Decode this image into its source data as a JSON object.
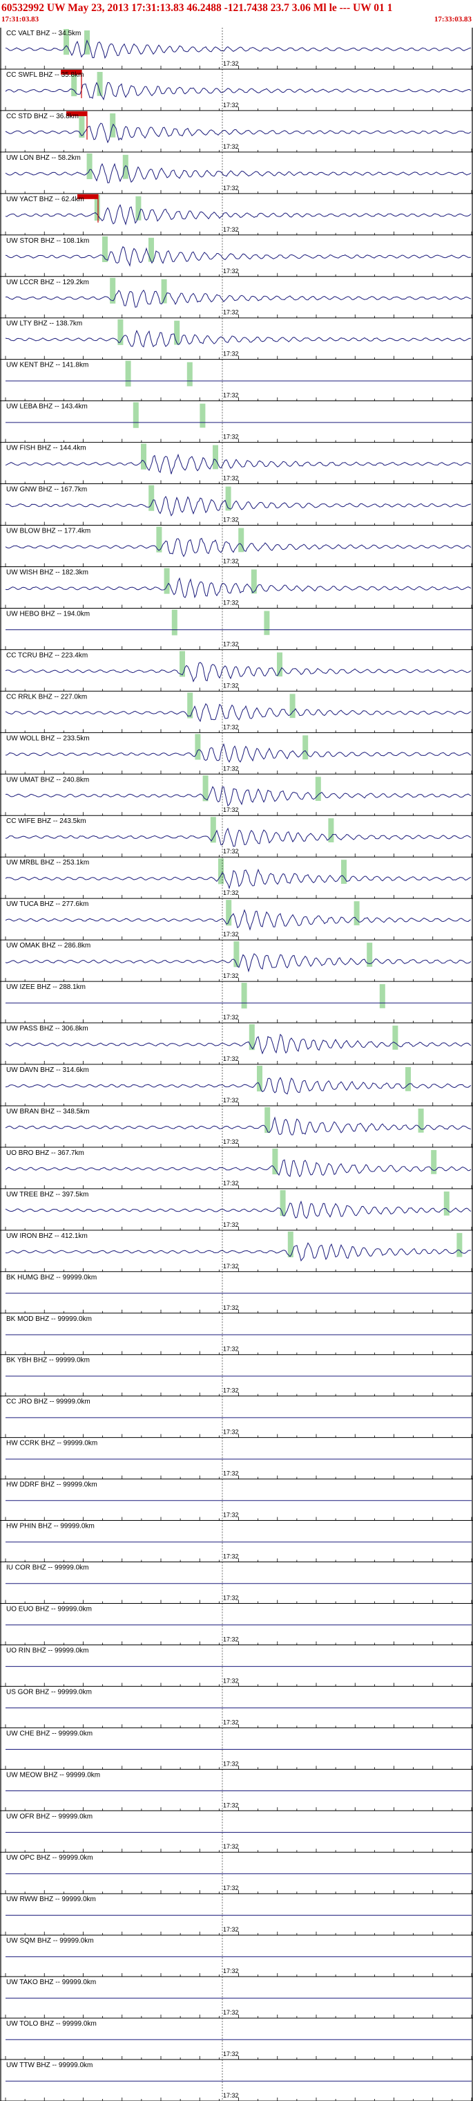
{
  "header": {
    "title": "60532992 UW May 23, 2013 17:31:13.83   46.2488  -121.7438 23.7 3.06 Ml le --- UW 01   1",
    "time_left": "17:31:03.83",
    "time_right": "17:33:03.83"
  },
  "chart_data": {
    "type": "seismogram",
    "title": "60532992 UW May 23, 2013 17:31:13.83   46.2488  -121.7438 23.7 3.06 Ml le --- UW 01   1",
    "x_start_label": "17:31:03.83",
    "x_end_label": "17:33:03.83",
    "mid_tick_label": "17:32",
    "colors": {
      "trace": "#1a1a7a",
      "pick_window": "#a8dca8",
      "pick_marker": "#cc0000",
      "header_text": "#d40000",
      "axis": "#000000"
    },
    "traces": [
      {
        "label": "CC VALT BHZ -- 34.5km",
        "has_data": true,
        "picks": 2,
        "red_marker": false
      },
      {
        "label": "CC SWFL BHZ -- 35.8km",
        "has_data": true,
        "picks": 2,
        "red_marker": true
      },
      {
        "label": "CC STD BHZ -- 36.8km",
        "has_data": true,
        "picks": 2,
        "red_marker": true
      },
      {
        "label": "UW LON BHZ -- 58.2km",
        "has_data": true,
        "picks": 2,
        "red_marker": false
      },
      {
        "label": "UW YACT BHZ -- 62.4km",
        "has_data": true,
        "picks": 2,
        "red_marker": true
      },
      {
        "label": "UW STOR BHZ -- 108.1km",
        "has_data": true,
        "picks": 2,
        "red_marker": false
      },
      {
        "label": "UW LCCR BHZ -- 129.2km",
        "has_data": true,
        "picks": 2,
        "red_marker": false
      },
      {
        "label": "UW LTY BHZ -- 138.7km",
        "has_data": true,
        "picks": 2,
        "red_marker": false
      },
      {
        "label": "UW KENT BHZ -- 141.8km",
        "has_data": false,
        "picks": 2,
        "red_marker": false
      },
      {
        "label": "UW LEBA BHZ -- 143.4km",
        "has_data": false,
        "picks": 2,
        "red_marker": false
      },
      {
        "label": "UW FISH BHZ -- 144.4km",
        "has_data": true,
        "picks": 2,
        "red_marker": false
      },
      {
        "label": "UW GNW BHZ -- 167.7km",
        "has_data": true,
        "picks": 2,
        "red_marker": false
      },
      {
        "label": "UW BLOW BHZ -- 177.4km",
        "has_data": true,
        "picks": 2,
        "red_marker": false
      },
      {
        "label": "UW WISH BHZ -- 182.3km",
        "has_data": true,
        "picks": 2,
        "red_marker": false
      },
      {
        "label": "UW HEBO BHZ -- 194.0km",
        "has_data": false,
        "picks": 2,
        "red_marker": false
      },
      {
        "label": "CC TCRU BHZ -- 223.4km",
        "has_data": true,
        "picks": 2,
        "red_marker": false
      },
      {
        "label": "CC RRLK BHZ -- 227.0km",
        "has_data": true,
        "picks": 2,
        "red_marker": false
      },
      {
        "label": "UW WOLL BHZ -- 233.5km",
        "has_data": true,
        "picks": 2,
        "red_marker": false
      },
      {
        "label": "UW UMAT BHZ -- 240.8km",
        "has_data": true,
        "picks": 2,
        "red_marker": false
      },
      {
        "label": "CC WIFE BHZ -- 243.5km",
        "has_data": true,
        "picks": 2,
        "red_marker": false
      },
      {
        "label": "UW MRBL BHZ -- 253.1km",
        "has_data": true,
        "picks": 2,
        "red_marker": false
      },
      {
        "label": "UW TUCA BHZ -- 277.6km",
        "has_data": true,
        "picks": 2,
        "red_marker": false
      },
      {
        "label": "UW OMAK BHZ -- 286.8km",
        "has_data": true,
        "picks": 2,
        "red_marker": false
      },
      {
        "label": "UW IZEE BHZ -- 288.1km",
        "has_data": false,
        "picks": 2,
        "red_marker": false
      },
      {
        "label": "UW PASS BHZ -- 306.8km",
        "has_data": true,
        "picks": 2,
        "red_marker": false
      },
      {
        "label": "UW DAVN BHZ -- 314.6km",
        "has_data": true,
        "picks": 2,
        "red_marker": false
      },
      {
        "label": "UW BRAN BHZ -- 348.5km",
        "has_data": true,
        "picks": 2,
        "red_marker": false
      },
      {
        "label": "UO BRO BHZ -- 367.7km",
        "has_data": true,
        "picks": 2,
        "red_marker": false
      },
      {
        "label": "UW TREE BHZ -- 397.5km",
        "has_data": true,
        "picks": 2,
        "red_marker": false
      },
      {
        "label": "UW IRON BHZ -- 412.1km",
        "has_data": true,
        "picks": 2,
        "red_marker": false
      },
      {
        "label": "BK HUMG BHZ -- 99999.0km",
        "has_data": false,
        "picks": 0,
        "red_marker": false
      },
      {
        "label": "BK MOD BHZ -- 99999.0km",
        "has_data": false,
        "picks": 0,
        "red_marker": false
      },
      {
        "label": "BK YBH BHZ -- 99999.0km",
        "has_data": false,
        "picks": 0,
        "red_marker": false
      },
      {
        "label": "CC JRO BHZ -- 99999.0km",
        "has_data": false,
        "picks": 0,
        "red_marker": false
      },
      {
        "label": "HW CCRK BHZ -- 99999.0km",
        "has_data": false,
        "picks": 0,
        "red_marker": false
      },
      {
        "label": "HW DDRF BHZ -- 99999.0km",
        "has_data": false,
        "picks": 0,
        "red_marker": false
      },
      {
        "label": "HW PHIN BHZ -- 99999.0km",
        "has_data": false,
        "picks": 0,
        "red_marker": false
      },
      {
        "label": "IU COR BHZ -- 99999.0km",
        "has_data": false,
        "picks": 0,
        "red_marker": false
      },
      {
        "label": "UO EUO BHZ -- 99999.0km",
        "has_data": false,
        "picks": 0,
        "red_marker": false
      },
      {
        "label": "UO RIN BHZ -- 99999.0km",
        "has_data": false,
        "picks": 0,
        "red_marker": false
      },
      {
        "label": "US GOR BHZ -- 99999.0km",
        "has_data": false,
        "picks": 0,
        "red_marker": false
      },
      {
        "label": "UW CHE BHZ -- 99999.0km",
        "has_data": false,
        "picks": 0,
        "red_marker": false
      },
      {
        "label": "UW MEOW BHZ -- 99999.0km",
        "has_data": false,
        "picks": 0,
        "red_marker": false
      },
      {
        "label": "UW OFR BHZ -- 99999.0km",
        "has_data": false,
        "picks": 0,
        "red_marker": false
      },
      {
        "label": "UW OPC BHZ -- 99999.0km",
        "has_data": false,
        "picks": 0,
        "red_marker": false
      },
      {
        "label": "UW RWW BHZ -- 99999.0km",
        "has_data": false,
        "picks": 0,
        "red_marker": false
      },
      {
        "label": "UW SQM BHZ -- 99999.0km",
        "has_data": false,
        "picks": 0,
        "red_marker": false
      },
      {
        "label": "UW TAKO BHZ -- 99999.0km",
        "has_data": false,
        "picks": 0,
        "red_marker": false
      },
      {
        "label": "UW TOLO BHZ -- 99999.0km",
        "has_data": false,
        "picks": 0,
        "red_marker": false
      },
      {
        "label": "UW TTW BHZ -- 99999.0km",
        "has_data": false,
        "picks": 0,
        "red_marker": false
      }
    ]
  }
}
